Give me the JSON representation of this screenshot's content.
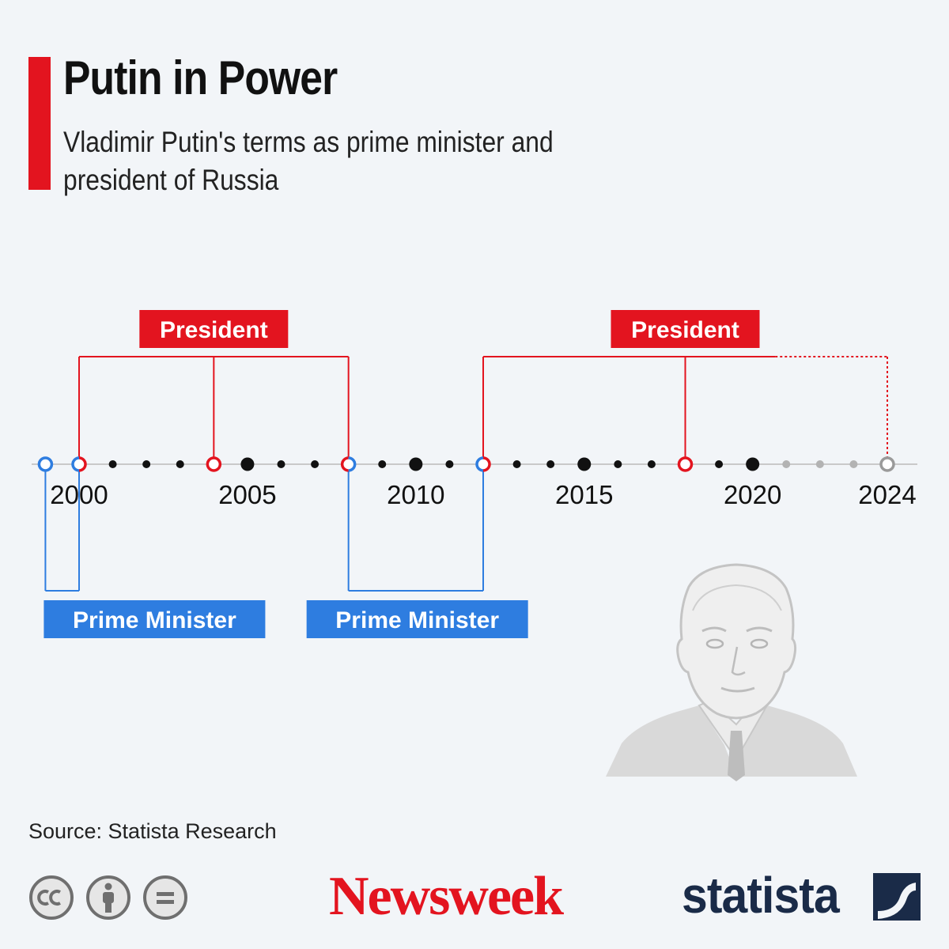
{
  "header": {
    "title": "Putin in Power",
    "subtitle": "Vladimir Putin's terms as prime minister and president of Russia"
  },
  "chart_data": {
    "type": "timeline",
    "x_range": [
      1999,
      2024
    ],
    "tick_labels": [
      2000,
      2005,
      2010,
      2015,
      2020,
      2024
    ],
    "projected_from": 2021,
    "periods": [
      {
        "role": "Prime Minister",
        "label": "Prime Minister",
        "start": 1999,
        "end": 2000,
        "color": "#2e7de0"
      },
      {
        "role": "President",
        "label": "President",
        "start": 2000,
        "end": 2008,
        "color": "#e3141f",
        "mid_event": 2004
      },
      {
        "role": "Prime Minister",
        "label": "Prime Minister",
        "start": 2008,
        "end": 2012,
        "color": "#2e7de0"
      },
      {
        "role": "President",
        "label": "President",
        "start": 2012,
        "end": 2024,
        "color": "#e3141f",
        "mid_event": 2018,
        "ongoing_from": 2021
      }
    ],
    "major_years": [
      2005,
      2010,
      2015,
      2020
    ]
  },
  "footer": {
    "source": "Source: Statista Research",
    "newsweek_logo": "Newsweek",
    "statista_logo": "statista"
  },
  "icons": [
    "cc-icon",
    "attribution-icon",
    "no-derivatives-icon",
    "statista-mark-icon",
    "putin-portrait"
  ],
  "colors": {
    "accent": "#e3141f",
    "president": "#e3141f",
    "prime_minister": "#2e7de0",
    "future": "#9a9a9a"
  }
}
